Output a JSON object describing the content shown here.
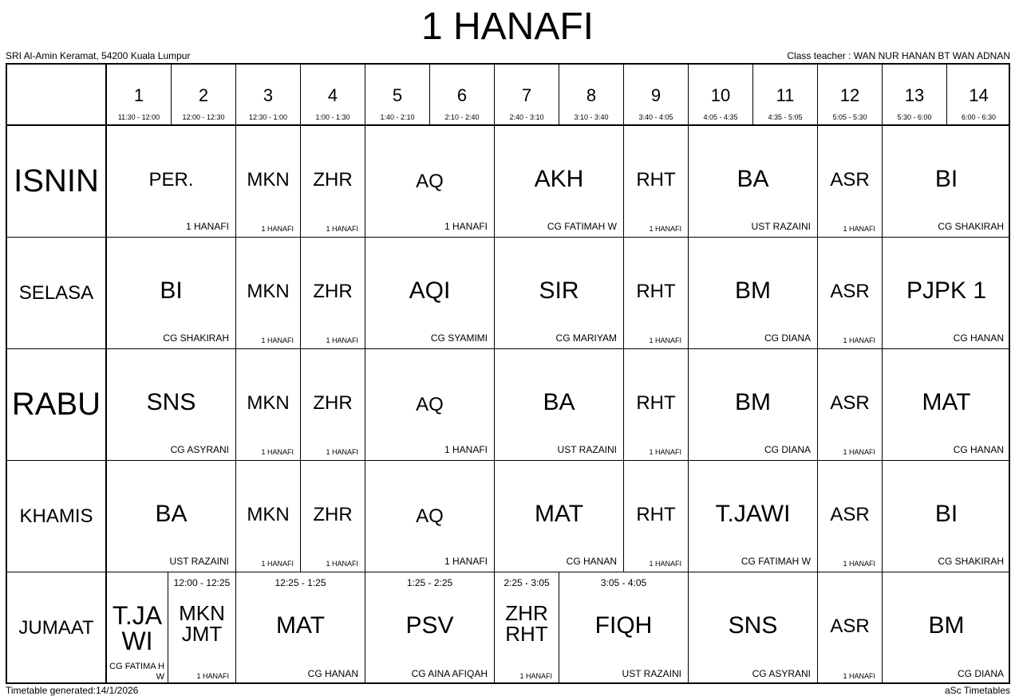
{
  "title": "1 HANAFI",
  "school": "SRI Al-Amin Keramat, 54200 Kuala Lumpur",
  "class_teacher": "Class teacher : WAN NUR HANAN BT WAN ADNAN",
  "footer_left": "Timetable generated:14/1/2026",
  "footer_right": "aSc Timetables",
  "periods": [
    {
      "num": "1",
      "time": "11:30 - 12:00"
    },
    {
      "num": "2",
      "time": "12:00 - 12:30"
    },
    {
      "num": "3",
      "time": "12:30 - 1:00"
    },
    {
      "num": "4",
      "time": "1:00 - 1:30"
    },
    {
      "num": "5",
      "time": "1:40 - 2:10"
    },
    {
      "num": "6",
      "time": "2:10 - 2:40"
    },
    {
      "num": "7",
      "time": "2:40 - 3:10"
    },
    {
      "num": "8",
      "time": "3:10 - 3:40"
    },
    {
      "num": "9",
      "time": "3:40 - 4:05"
    },
    {
      "num": "10",
      "time": "4:05 - 4:35"
    },
    {
      "num": "11",
      "time": "4:35 - 5:05"
    },
    {
      "num": "12",
      "time": "5:05 - 5:30"
    },
    {
      "num": "13",
      "time": "5:30 - 6:00"
    },
    {
      "num": "14",
      "time": "6:00 - 6:30"
    }
  ],
  "days": [
    {
      "name": "ISNIN",
      "lessons": [
        {
          "periods": [
            1,
            2
          ],
          "subject": "PER.",
          "teacher": "1 HANAFI"
        },
        {
          "periods": [
            3,
            3
          ],
          "subject": "MKN",
          "teacher": "1 HANAFI"
        },
        {
          "periods": [
            4,
            4
          ],
          "subject": "ZHR",
          "teacher": "1 HANAFI"
        },
        {
          "periods": [
            5,
            6
          ],
          "subject": "AQ",
          "teacher": "1 HANAFI"
        },
        {
          "periods": [
            7,
            8
          ],
          "subject": "AKH",
          "teacher": "CG FATIMAH W"
        },
        {
          "periods": [
            9,
            9
          ],
          "subject": "RHT",
          "teacher": "1 HANAFI"
        },
        {
          "periods": [
            10,
            11
          ],
          "subject": "BA",
          "teacher": "UST RAZAINI"
        },
        {
          "periods": [
            12,
            12
          ],
          "subject": "ASR",
          "teacher": "1 HANAFI"
        },
        {
          "periods": [
            13,
            14
          ],
          "subject": "BI",
          "teacher": "CG SHAKIRAH"
        }
      ]
    },
    {
      "name": "SELASA",
      "lessons": [
        {
          "periods": [
            1,
            2
          ],
          "subject": "BI",
          "teacher": "CG SHAKIRAH"
        },
        {
          "periods": [
            3,
            3
          ],
          "subject": "MKN",
          "teacher": "1 HANAFI"
        },
        {
          "periods": [
            4,
            4
          ],
          "subject": "ZHR",
          "teacher": "1 HANAFI"
        },
        {
          "periods": [
            5,
            6
          ],
          "subject": "AQI",
          "teacher": "CG SYAMIMI"
        },
        {
          "periods": [
            7,
            8
          ],
          "subject": "SIR",
          "teacher": "CG MARIYAM"
        },
        {
          "periods": [
            9,
            9
          ],
          "subject": "RHT",
          "teacher": "1 HANAFI"
        },
        {
          "periods": [
            10,
            11
          ],
          "subject": "BM",
          "teacher": "CG DIANA"
        },
        {
          "periods": [
            12,
            12
          ],
          "subject": "ASR",
          "teacher": "1 HANAFI"
        },
        {
          "periods": [
            13,
            14
          ],
          "subject": "PJPK 1",
          "teacher": "CG HANAN"
        }
      ]
    },
    {
      "name": "RABU",
      "lessons": [
        {
          "periods": [
            1,
            2
          ],
          "subject": "SNS",
          "teacher": "CG ASYRANI"
        },
        {
          "periods": [
            3,
            3
          ],
          "subject": "MKN",
          "teacher": "1 HANAFI"
        },
        {
          "periods": [
            4,
            4
          ],
          "subject": "ZHR",
          "teacher": "1 HANAFI"
        },
        {
          "periods": [
            5,
            6
          ],
          "subject": "AQ",
          "teacher": "1 HANAFI"
        },
        {
          "periods": [
            7,
            8
          ],
          "subject": "BA",
          "teacher": "UST RAZAINI"
        },
        {
          "periods": [
            9,
            9
          ],
          "subject": "RHT",
          "teacher": "1 HANAFI"
        },
        {
          "periods": [
            10,
            11
          ],
          "subject": "BM",
          "teacher": "CG DIANA"
        },
        {
          "periods": [
            12,
            12
          ],
          "subject": "ASR",
          "teacher": "1 HANAFI"
        },
        {
          "periods": [
            13,
            14
          ],
          "subject": "MAT",
          "teacher": "CG HANAN"
        }
      ]
    },
    {
      "name": "KHAMIS",
      "lessons": [
        {
          "periods": [
            1,
            2
          ],
          "subject": "BA",
          "teacher": "UST RAZAINI"
        },
        {
          "periods": [
            3,
            3
          ],
          "subject": "MKN",
          "teacher": "1 HANAFI"
        },
        {
          "periods": [
            4,
            4
          ],
          "subject": "ZHR",
          "teacher": "1 HANAFI"
        },
        {
          "periods": [
            5,
            6
          ],
          "subject": "AQ",
          "teacher": "1 HANAFI"
        },
        {
          "periods": [
            7,
            8
          ],
          "subject": "MAT",
          "teacher": "CG HANAN"
        },
        {
          "periods": [
            9,
            9
          ],
          "subject": "RHT",
          "teacher": "1 HANAFI"
        },
        {
          "periods": [
            10,
            11
          ],
          "subject": "T.JAWI",
          "teacher": "CG FATIMAH W"
        },
        {
          "periods": [
            12,
            12
          ],
          "subject": "ASR",
          "teacher": "1 HANAFI"
        },
        {
          "periods": [
            13,
            14
          ],
          "subject": "BI",
          "teacher": "CG SHAKIRAH"
        }
      ]
    },
    {
      "name": "JUMAAT",
      "lessons": [
        {
          "subject": "T.JA WI",
          "teacher": "CG FATIMA H W",
          "time": ""
        },
        {
          "subject": "MKN JMT",
          "teacher": "1 HANAFI",
          "time": "12:00 - 12:25"
        },
        {
          "subject": "MAT",
          "teacher": "CG HANAN",
          "time": "12:25 - 1:25"
        },
        {
          "subject": "PSV",
          "teacher": "CG AINA AFIQAH",
          "time": "1:25 - 2:25"
        },
        {
          "subject": "ZHR RHT",
          "teacher": "1 HANAFI",
          "time": "2:25 - 3:05"
        },
        {
          "subject": "FIQH",
          "teacher": "UST RAZAINI",
          "time": "3:05 - 4:05"
        },
        {
          "subject": "SNS",
          "teacher": "CG ASYRANI",
          "time": ""
        },
        {
          "subject": "ASR",
          "teacher": "1 HANAFI",
          "time": ""
        },
        {
          "subject": "BM",
          "teacher": "CG DIANA",
          "time": ""
        }
      ]
    }
  ]
}
